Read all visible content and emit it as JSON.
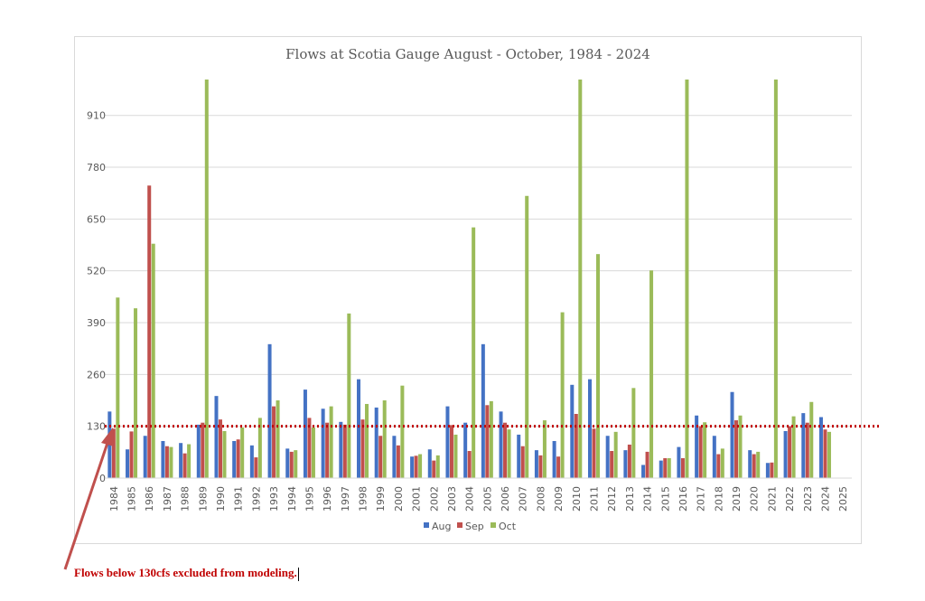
{
  "chart_data": {
    "type": "bar",
    "title": "Flows at Scotia Gauge August - October, 1984 - 2024",
    "xlabel": "",
    "ylabel": "",
    "ylim": [
      0,
      1000
    ],
    "yticks": [
      0,
      130,
      260,
      390,
      520,
      650,
      780,
      910
    ],
    "grid": true,
    "legend_position": "bottom",
    "categories": [
      "1984",
      "1985",
      "1986",
      "1987",
      "1988",
      "1989",
      "1990",
      "1991",
      "1992",
      "1993",
      "1994",
      "1995",
      "1996",
      "1997",
      "1998",
      "1999",
      "2000",
      "2001",
      "2002",
      "2003",
      "2004",
      "2005",
      "2006",
      "2007",
      "2008",
      "2009",
      "2010",
      "2011",
      "2012",
      "2013",
      "2014",
      "2015",
      "2016",
      "2017",
      "2018",
      "2019",
      "2020",
      "2021",
      "2022",
      "2023",
      "2024",
      "2025"
    ],
    "series": [
      {
        "name": "Aug",
        "color": "#4472c4",
        "values": [
          167,
          72,
          106,
          93,
          88,
          134,
          206,
          93,
          82,
          336,
          74,
          222,
          174,
          141,
          248,
          177,
          106,
          54,
          72,
          180,
          139,
          336,
          167,
          109,
          70,
          93,
          234,
          248,
          106,
          70,
          33,
          44,
          78,
          157,
          106,
          216,
          70,
          38,
          118,
          163,
          153,
          null
        ]
      },
      {
        "name": "Sep",
        "color": "#c0504d",
        "values": [
          124,
          117,
          734,
          80,
          62,
          139,
          147,
          97,
          52,
          180,
          66,
          151,
          139,
          134,
          147,
          106,
          82,
          56,
          44,
          133,
          68,
          183,
          139,
          80,
          57,
          54,
          161,
          124,
          68,
          84,
          66,
          50,
          50,
          130,
          60,
          145,
          60,
          39,
          130,
          139,
          122,
          null
        ]
      },
      {
        "name": "Oct",
        "color": "#9bbb59",
        "values": [
          453,
          426,
          588,
          78,
          85,
          1000,
          118,
          127,
          151,
          195,
          70,
          127,
          180,
          413,
          186,
          195,
          232,
          60,
          57,
          109,
          629,
          193,
          122,
          708,
          145,
          416,
          1000,
          562,
          116,
          226,
          521,
          50,
          1000,
          140,
          74,
          157,
          66,
          1000,
          155,
          191,
          116,
          null
        ]
      }
    ],
    "threshold": {
      "value": 130,
      "color": "#c00000"
    },
    "annotation": "Flows below 130cfs excluded from modeling."
  }
}
